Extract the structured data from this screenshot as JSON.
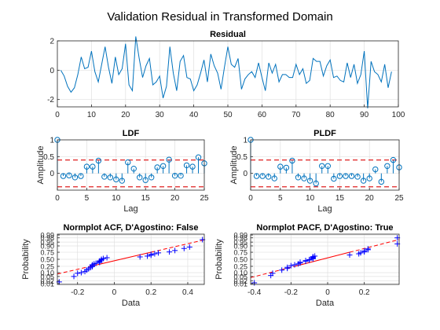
{
  "figure": {
    "title": "Validation Residual in Transformed Domain"
  },
  "colors": {
    "residual_line": "#0072BD",
    "stem": "#0072BD",
    "bounds": "#D95319",
    "bound_red": "#E02020",
    "qq_marker": "#0000FF",
    "qq_line": "#FF0000",
    "grid": "#E0E0E0",
    "axis": "#262626"
  },
  "chart_data": [
    {
      "id": "residual",
      "type": "line",
      "title": "Residual",
      "xlabel": "",
      "ylabel": "",
      "xlim": [
        0,
        100
      ],
      "ylim": [
        -2.5,
        2
      ],
      "xticks": [
        0,
        10,
        20,
        30,
        40,
        50,
        60,
        70,
        80,
        90,
        100
      ],
      "yticks": [
        -2,
        0,
        2
      ],
      "grid": true,
      "x": [
        1,
        2,
        3,
        4,
        5,
        6,
        7,
        8,
        9,
        10,
        11,
        12,
        13,
        14,
        15,
        16,
        17,
        18,
        19,
        20,
        21,
        22,
        23,
        24,
        25,
        26,
        27,
        28,
        29,
        30,
        31,
        32,
        33,
        34,
        35,
        36,
        37,
        38,
        39,
        40,
        41,
        42,
        43,
        44,
        45,
        46,
        47,
        48,
        49,
        50,
        51,
        52,
        53,
        54,
        55,
        56,
        57,
        58,
        59,
        60,
        61,
        62,
        63,
        64,
        65,
        66,
        67,
        68,
        69,
        70,
        71,
        72,
        73,
        74,
        75,
        76,
        77,
        78,
        79,
        80,
        81,
        82,
        83,
        84,
        85,
        86,
        87,
        88,
        89,
        90,
        91,
        92,
        93,
        94,
        95,
        96,
        97,
        98
      ],
      "values": [
        0.0,
        -0.4,
        -1.1,
        -1.5,
        -1.2,
        -0.3,
        0.9,
        0.1,
        0.2,
        1.3,
        -0.1,
        -0.8,
        0.4,
        1.6,
        0.2,
        -0.9,
        0.9,
        -0.3,
        0.1,
        1.8,
        -1.0,
        -1.4,
        2.3,
        0.8,
        -0.5,
        0.3,
        0.8,
        -1.0,
        -0.8,
        -0.4,
        -1.9,
        -1.1,
        1.6,
        -0.2,
        -1.4,
        0.6,
        1.0,
        -0.5,
        -0.6,
        -1.4,
        -1.0,
        -0.2,
        0.7,
        -0.8,
        1.1,
        0.3,
        -0.2,
        -1.3,
        0.2,
        1.6,
        0.4,
        0.2,
        0.8,
        -1.3,
        -0.6,
        -0.3,
        -0.1,
        -0.5,
        0.5,
        -0.5,
        -1.4,
        0.5,
        -0.2,
        0.4,
        -0.8,
        -0.3,
        -0.3,
        -0.5,
        -0.5,
        0.4,
        -0.3,
        0.1,
        -0.9,
        -0.7,
        0.8,
        0.6,
        0.6,
        -0.4,
        0.3,
        0.7,
        -0.5,
        -0.4,
        -0.7,
        -0.8,
        0.5,
        -0.5,
        0.4,
        -0.9,
        -0.3,
        1.3,
        -2.6,
        0.6,
        -0.1,
        -0.3,
        -0.8,
        0.4,
        -1.2,
        -0.1
      ]
    },
    {
      "id": "ldf",
      "type": "stem",
      "title": "LDF",
      "xlabel": "Lag",
      "ylabel": "Amplitude",
      "xlim": [
        0,
        25
      ],
      "ylim": [
        -0.5,
        1
      ],
      "xticks": [
        0,
        5,
        10,
        15,
        20,
        25
      ],
      "yticks": [
        0,
        0.5,
        1
      ],
      "grid": true,
      "x": [
        0,
        1,
        2,
        3,
        4,
        5,
        6,
        7,
        8,
        9,
        10,
        11,
        12,
        13,
        14,
        15,
        16,
        17,
        18,
        19,
        20,
        21,
        22,
        23,
        24,
        25
      ],
      "values": [
        1.0,
        -0.08,
        -0.06,
        -0.12,
        -0.08,
        0.2,
        0.2,
        0.38,
        -0.1,
        -0.12,
        -0.18,
        -0.22,
        0.33,
        0.14,
        -0.12,
        -0.2,
        -0.12,
        0.18,
        0.22,
        0.41,
        -0.07,
        -0.07,
        0.24,
        0.2,
        0.48,
        0.3
      ],
      "bounds": [
        0.4,
        -0.4
      ]
    },
    {
      "id": "pldf",
      "type": "stem",
      "title": "PLDF",
      "xlabel": "Lag",
      "ylabel": "Amplitude",
      "xlim": [
        0,
        25
      ],
      "ylim": [
        -0.5,
        1
      ],
      "xticks": [
        0,
        5,
        10,
        15,
        20,
        25
      ],
      "yticks": [
        0,
        0.5,
        1
      ],
      "grid": true,
      "x": [
        0,
        1,
        2,
        3,
        4,
        5,
        6,
        7,
        8,
        9,
        10,
        11,
        12,
        13,
        14,
        15,
        16,
        17,
        18,
        19,
        20,
        21,
        22,
        23,
        24,
        25
      ],
      "values": [
        1.0,
        -0.08,
        -0.08,
        -0.1,
        -0.15,
        0.2,
        0.17,
        0.38,
        -0.12,
        -0.15,
        -0.22,
        -0.3,
        0.22,
        0.22,
        -0.16,
        -0.08,
        -0.08,
        -0.08,
        -0.1,
        -0.22,
        -0.15,
        0.12,
        -0.25,
        0.22,
        0.4,
        0.18
      ],
      "bounds": [
        0.4,
        -0.4
      ]
    },
    {
      "id": "normplot_acf",
      "type": "scatter",
      "title": "Normplot ACF, D'Agostino: False",
      "xlabel": "Data",
      "ylabel": "Probability",
      "xlim": [
        -0.31,
        0.49
      ],
      "xticks": [
        -0.2,
        0,
        0.2,
        0.4
      ],
      "yticks": [
        0.01,
        0.02,
        0.05,
        0.1,
        0.25,
        0.5,
        0.75,
        0.9,
        0.95,
        0.98,
        0.99
      ],
      "ytick_labels": [
        "0.01",
        "0.02",
        "0.05",
        "0.10",
        "0.25",
        "0.50",
        "0.75",
        "0.90",
        "0.95",
        "0.98",
        "0.99"
      ],
      "yscale": "normal-probability",
      "grid": true,
      "x": [
        -0.3,
        -0.22,
        -0.2,
        -0.18,
        -0.16,
        -0.15,
        -0.14,
        -0.13,
        -0.12,
        -0.12,
        -0.12,
        -0.11,
        -0.1,
        -0.08,
        -0.08,
        -0.08,
        -0.07,
        -0.07,
        -0.06,
        -0.04,
        0.14,
        0.18,
        0.2,
        0.2,
        0.22,
        0.24,
        0.3,
        0.33,
        0.38,
        0.41,
        0.48
      ],
      "values": [
        0.015,
        0.05,
        0.09,
        0.1,
        0.12,
        0.15,
        0.18,
        0.21,
        0.24,
        0.27,
        0.3,
        0.33,
        0.35,
        0.38,
        0.41,
        0.44,
        0.47,
        0.5,
        0.53,
        0.56,
        0.59,
        0.62,
        0.65,
        0.68,
        0.7,
        0.73,
        0.76,
        0.8,
        0.85,
        0.88,
        0.97
      ]
    },
    {
      "id": "normplot_pacf",
      "type": "scatter",
      "title": "Normplot PACF, D'Agostino: True",
      "xlabel": "Data",
      "ylabel": "Probability",
      "xlim": [
        -0.42,
        0.39
      ],
      "xticks": [
        -0.4,
        -0.2,
        0,
        0.2
      ],
      "yticks": [
        0.01,
        0.02,
        0.05,
        0.1,
        0.25,
        0.5,
        0.75,
        0.9,
        0.95,
        0.98,
        0.99
      ],
      "ytick_labels": [
        "0.01",
        "0.02",
        "0.05",
        "0.10",
        "0.25",
        "0.50",
        "0.75",
        "0.90",
        "0.95",
        "0.98",
        "0.99"
      ],
      "yscale": "normal-probability",
      "grid": true,
      "x": [
        -0.4,
        -0.31,
        -0.3,
        -0.25,
        -0.22,
        -0.22,
        -0.2,
        -0.18,
        -0.16,
        -0.15,
        -0.15,
        -0.12,
        -0.12,
        -0.1,
        -0.1,
        -0.08,
        -0.08,
        -0.08,
        -0.08,
        -0.08,
        -0.07,
        0.12,
        0.17,
        0.18,
        0.2,
        0.2,
        0.22,
        0.22,
        0.38,
        0.38
      ],
      "values": [
        0.012,
        0.06,
        0.09,
        0.15,
        0.19,
        0.22,
        0.27,
        0.3,
        0.33,
        0.36,
        0.39,
        0.42,
        0.45,
        0.47,
        0.49,
        0.52,
        0.54,
        0.56,
        0.58,
        0.6,
        0.62,
        0.66,
        0.7,
        0.73,
        0.76,
        0.79,
        0.82,
        0.84,
        0.93,
        0.98
      ]
    }
  ]
}
